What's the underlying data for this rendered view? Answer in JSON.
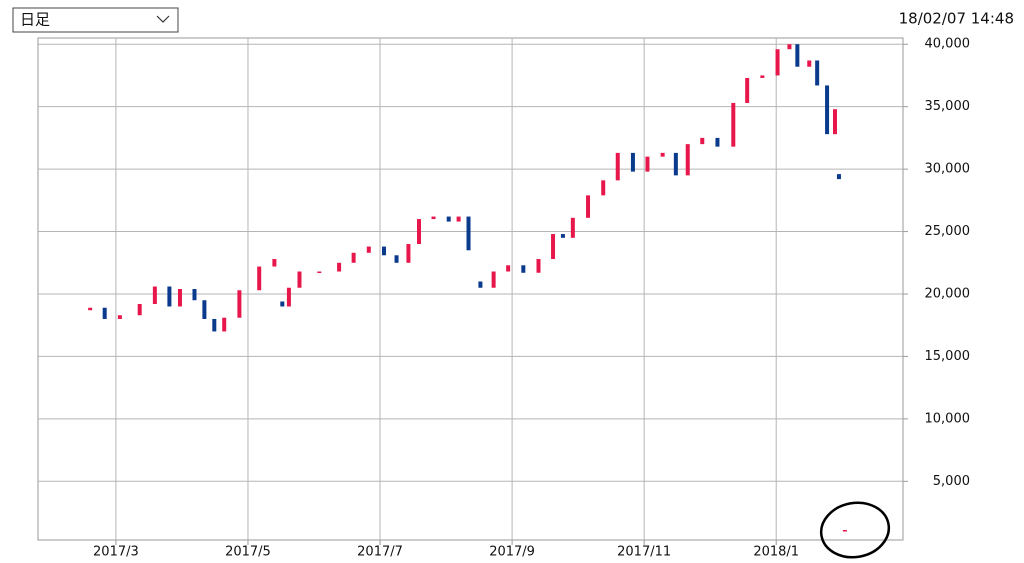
{
  "chart_data": {
    "type": "candlestick",
    "period_selector": "日足",
    "timestamp": "18/02/07 14:48",
    "up_color": "#e8174b",
    "down_color": "#0a3a8c",
    "grid": true,
    "xlim": [
      1.82,
      14.92
    ],
    "xticks": [
      {
        "value": 3,
        "label": "2017/3"
      },
      {
        "value": 5,
        "label": "2017/5"
      },
      {
        "value": 7,
        "label": "2017/7"
      },
      {
        "value": 9,
        "label": "2017/9"
      },
      {
        "value": 11,
        "label": "2017/11"
      },
      {
        "value": 13,
        "label": "2018/1"
      }
    ],
    "ylim": [
      300,
      40500
    ],
    "yticks": [
      {
        "value": 5000,
        "label": "5,000"
      },
      {
        "value": 10000,
        "label": "10,000"
      },
      {
        "value": 15000,
        "label": "15,000"
      },
      {
        "value": 20000,
        "label": "20,000"
      },
      {
        "value": 25000,
        "label": "25,000"
      },
      {
        "value": 30000,
        "label": "30,000"
      },
      {
        "value": 35000,
        "label": "35,000"
      },
      {
        "value": 40000,
        "label": "40,000"
      }
    ],
    "x": [
      2.61,
      2.83,
      3.06,
      3.36,
      3.59,
      3.81,
      3.97,
      4.19,
      4.34,
      4.49,
      4.64,
      4.87,
      5.17,
      5.4,
      5.52,
      5.62,
      5.78,
      6.08,
      6.38,
      6.6,
      6.83,
      7.06,
      7.25,
      7.43,
      7.59,
      7.81,
      8.04,
      8.19,
      8.34,
      8.52,
      8.72,
      8.94,
      9.17,
      9.4,
      9.62,
      9.77,
      9.92,
      10.15,
      10.38,
      10.6,
      10.83,
      11.05,
      11.28,
      11.48,
      11.66,
      11.88,
      12.11,
      12.35,
      12.56,
      12.79,
      13.02,
      13.2,
      13.32,
      13.5,
      13.62,
      13.77,
      13.89,
      13.95,
      14.04
    ],
    "open": [
      18700,
      18900,
      18000,
      18300,
      19200,
      20600,
      19000,
      20400,
      19500,
      18000,
      17000,
      18100,
      20300,
      22200,
      19400,
      19000,
      20500,
      21800,
      21800,
      22500,
      23300,
      23800,
      23100,
      22500,
      24000,
      26000,
      26200,
      25800,
      26200,
      21000,
      20500,
      21800,
      22300,
      21700,
      22800,
      24800,
      24500,
      26100,
      27900,
      29100,
      31300,
      29800,
      31000,
      31300,
      29500,
      32000,
      32500,
      31800,
      35300,
      37300,
      37500,
      39600,
      40000,
      38200,
      38700,
      36700,
      32800,
      29600,
      1000
    ],
    "close": [
      18900,
      18000,
      18300,
      19200,
      20600,
      19000,
      20400,
      19500,
      18000,
      17000,
      18100,
      20300,
      22200,
      22800,
      19000,
      20500,
      21800,
      21800,
      22500,
      23300,
      23800,
      23100,
      22500,
      24000,
      26000,
      26200,
      25800,
      26200,
      23500,
      20500,
      21800,
      22300,
      21700,
      22800,
      24800,
      24500,
      26100,
      27900,
      29100,
      31300,
      29800,
      31000,
      31300,
      29500,
      32000,
      32500,
      31800,
      35300,
      37300,
      37500,
      39600,
      40000,
      38200,
      38700,
      36700,
      32800,
      34800,
      29200,
      1100
    ]
  }
}
